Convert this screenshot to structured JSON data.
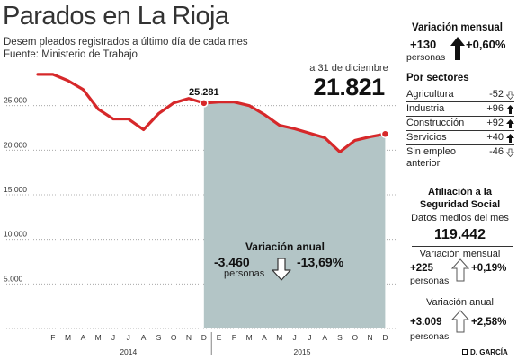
{
  "header": {
    "title": "Parados en La Rioja",
    "subtitle": "Desem pleados registrados a último día de cada mes",
    "source": "Fuente: Ministerio de Trabajo"
  },
  "chart_data": {
    "type": "line",
    "title": "Parados en La Rioja",
    "x": [
      "2014-01",
      "2014-02",
      "2014-03",
      "2014-04",
      "2014-05",
      "2014-06",
      "2014-07",
      "2014-08",
      "2014-09",
      "2014-10",
      "2014-11",
      "2014-12",
      "2015-01",
      "2015-02",
      "2015-03",
      "2015-04",
      "2015-05",
      "2015-06",
      "2015-07",
      "2015-08",
      "2015-09",
      "2015-10",
      "2015-11",
      "2015-12"
    ],
    "tick_labels": [
      "F",
      "M",
      "A",
      "M",
      "J",
      "J",
      "A",
      "S",
      "O",
      "N",
      "D",
      "E",
      "F",
      "M",
      "A",
      "M",
      "J",
      "J",
      "A",
      "S",
      "O",
      "N",
      "D"
    ],
    "year_labels": [
      {
        "label": "2014"
      },
      {
        "label": "2015"
      }
    ],
    "series": [
      {
        "values": [
          28500,
          28500,
          27800,
          26800,
          24600,
          23500,
          23500,
          22300,
          24100,
          25300,
          25800,
          25281,
          25400,
          25400,
          25000,
          24000,
          22800,
          22400,
          21900,
          21400,
          19800,
          21100,
          21500,
          21821
        ]
      }
    ],
    "yticks": [
      5000,
      10000,
      15000,
      20000,
      25000
    ],
    "ytick_labels": [
      "5.000",
      "10.000",
      "15.000",
      "20.000",
      "25.000"
    ],
    "ylim": [
      0,
      30000
    ],
    "grid": "horizontal-dotted",
    "shaded_from": "2014-12",
    "highlight_points": [
      {
        "x": "2014-12",
        "y": 25281,
        "label": "25.281"
      },
      {
        "x": "2015-12",
        "y": 21821
      }
    ],
    "colors": {
      "line": "#d6282a",
      "area": "#b3c5c6",
      "grid": "#9a9a9a"
    }
  },
  "callout": {
    "label": "a 31 de diciembre",
    "value": "21.821"
  },
  "annual_variation": {
    "title": "Variación anual",
    "abs": "-3.460",
    "unit": "personas",
    "pct": "-13,69%",
    "direction": "down"
  },
  "sidebar": {
    "monthly": {
      "title": "Variación mensual",
      "abs": "+130",
      "unit": "personas",
      "pct": "+0,60%",
      "direction": "up"
    },
    "sectors_title": "Por sectores",
    "sectors": [
      {
        "name": "Agricultura",
        "value": "-52",
        "direction": "down"
      },
      {
        "name": "Industria",
        "value": "+96",
        "direction": "up"
      },
      {
        "name": "Construcción",
        "value": "+92",
        "direction": "up"
      },
      {
        "name": "Servicios",
        "value": "+40",
        "direction": "up"
      },
      {
        "name": "Sin empleo anterior",
        "value": "-46",
        "direction": "down"
      }
    ],
    "affiliation": {
      "title": "Afiliación a la Seguridad Social",
      "subtitle": "Datos medios del mes",
      "value": "119.442",
      "monthly": {
        "title": "Variación mensual",
        "abs": "+225",
        "unit": "personas",
        "pct": "+0,19%",
        "direction": "up"
      },
      "annual": {
        "title": "Variación anual",
        "abs": "+3.009",
        "unit": "personas",
        "pct": "+2,58%",
        "direction": "up"
      }
    }
  },
  "credit": "D. GARCÍA"
}
